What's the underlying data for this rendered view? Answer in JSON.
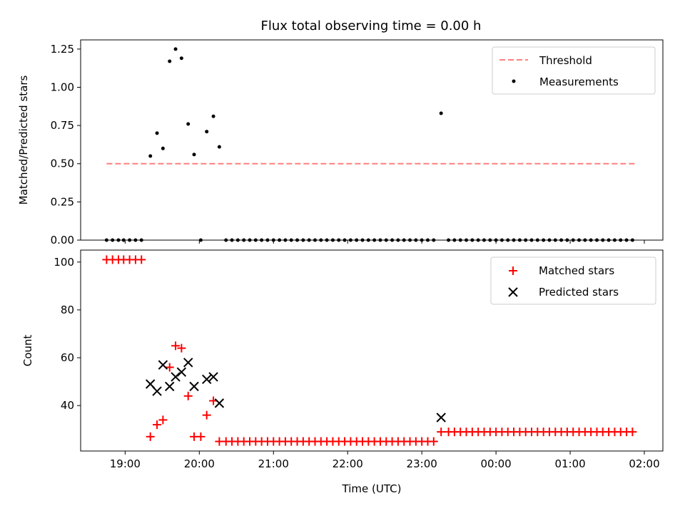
{
  "chart_data": {
    "type": "scatter",
    "title": "Flux total observing time = 0.00 h",
    "xlabel": "Time (UTC)",
    "x_units": "hours since 19:00 UTC",
    "x_tick_labels": [
      "19:00",
      "20:00",
      "21:00",
      "22:00",
      "23:00",
      "00:00",
      "01:00",
      "02:00"
    ],
    "x_tick_values": [
      0,
      1,
      2,
      3,
      4,
      5,
      6,
      7
    ],
    "xlim": [
      -0.6,
      7.25
    ],
    "panels": [
      {
        "id": "ratio",
        "ylabel": "Matched/Predicted stars",
        "ylim": [
          0,
          1.31
        ],
        "y_ticks": [
          0,
          0.25,
          0.5,
          0.75,
          1.0,
          1.25
        ],
        "y_tick_labels": [
          "0.00",
          "0.25",
          "0.50",
          "0.75",
          "1.00",
          "1.25"
        ],
        "legend_position": "upper right",
        "threshold": {
          "name": "Threshold",
          "value": 0.5,
          "x_start": -0.25,
          "x_end": 6.9,
          "color": "#ff7f7f",
          "style": "dashed"
        },
        "measurements": {
          "name": "Measurements",
          "color": "#000000",
          "points": [
            [
              -0.25,
              0
            ],
            [
              -0.17,
              0
            ],
            [
              -0.09,
              0
            ],
            [
              -0.02,
              0
            ],
            [
              0.06,
              0
            ],
            [
              0.14,
              0
            ],
            [
              0.22,
              0
            ],
            [
              0.34,
              0.55
            ],
            [
              0.43,
              0.7
            ],
            [
              0.51,
              0.6
            ],
            [
              0.6,
              1.17
            ],
            [
              0.68,
              1.25
            ],
            [
              0.76,
              1.19
            ],
            [
              0.85,
              0.76
            ],
            [
              0.93,
              0.56
            ],
            [
              1.02,
              0
            ],
            [
              1.1,
              0.71
            ],
            [
              1.19,
              0.81
            ],
            [
              1.27,
              0.61
            ],
            [
              1.36,
              0
            ],
            [
              1.44,
              0
            ],
            [
              1.52,
              0
            ],
            [
              1.6,
              0
            ],
            [
              1.68,
              0
            ],
            [
              1.76,
              0
            ],
            [
              1.84,
              0
            ],
            [
              1.92,
              0
            ],
            [
              2.0,
              0
            ],
            [
              2.08,
              0
            ],
            [
              2.16,
              0
            ],
            [
              2.24,
              0
            ],
            [
              2.32,
              0
            ],
            [
              2.4,
              0
            ],
            [
              2.48,
              0
            ],
            [
              2.56,
              0
            ],
            [
              2.64,
              0
            ],
            [
              2.72,
              0
            ],
            [
              2.8,
              0
            ],
            [
              2.88,
              0
            ],
            [
              2.96,
              0
            ],
            [
              3.04,
              0
            ],
            [
              3.12,
              0
            ],
            [
              3.2,
              0
            ],
            [
              3.28,
              0
            ],
            [
              3.36,
              0
            ],
            [
              3.44,
              0
            ],
            [
              3.52,
              0
            ],
            [
              3.6,
              0
            ],
            [
              3.68,
              0
            ],
            [
              3.76,
              0
            ],
            [
              3.84,
              0
            ],
            [
              3.92,
              0
            ],
            [
              4.0,
              0
            ],
            [
              4.08,
              0
            ],
            [
              4.16,
              0
            ],
            [
              4.26,
              0.83
            ],
            [
              4.36,
              0
            ],
            [
              4.44,
              0
            ],
            [
              4.52,
              0
            ],
            [
              4.6,
              0
            ],
            [
              4.68,
              0
            ],
            [
              4.76,
              0
            ],
            [
              4.84,
              0
            ],
            [
              4.92,
              0
            ],
            [
              5.0,
              0
            ],
            [
              5.08,
              0
            ],
            [
              5.16,
              0
            ],
            [
              5.24,
              0
            ],
            [
              5.32,
              0
            ],
            [
              5.4,
              0
            ],
            [
              5.48,
              0
            ],
            [
              5.56,
              0
            ],
            [
              5.64,
              0
            ],
            [
              5.72,
              0
            ],
            [
              5.8,
              0
            ],
            [
              5.88,
              0
            ],
            [
              5.96,
              0
            ],
            [
              6.04,
              0
            ],
            [
              6.12,
              0
            ],
            [
              6.2,
              0
            ],
            [
              6.28,
              0
            ],
            [
              6.36,
              0
            ],
            [
              6.44,
              0
            ],
            [
              6.52,
              0
            ],
            [
              6.6,
              0
            ],
            [
              6.68,
              0
            ],
            [
              6.76,
              0
            ],
            [
              6.84,
              0
            ]
          ]
        }
      },
      {
        "id": "counts",
        "ylabel": "Count",
        "ylim": [
          21,
          105
        ],
        "y_ticks": [
          40,
          60,
          80,
          100
        ],
        "y_tick_labels": [
          "40",
          "60",
          "80",
          "100"
        ],
        "legend_position": "upper right",
        "matched": {
          "name": "Matched stars",
          "color": "#ff0000",
          "marker": "+",
          "points": [
            [
              -0.25,
              101
            ],
            [
              -0.17,
              101
            ],
            [
              -0.09,
              101
            ],
            [
              -0.02,
              101
            ],
            [
              0.06,
              101
            ],
            [
              0.14,
              101
            ],
            [
              0.22,
              101
            ],
            [
              0.34,
              27
            ],
            [
              0.43,
              32
            ],
            [
              0.51,
              34
            ],
            [
              0.6,
              56
            ],
            [
              0.68,
              65
            ],
            [
              0.76,
              64
            ],
            [
              0.85,
              44
            ],
            [
              0.93,
              27
            ],
            [
              1.02,
              27
            ],
            [
              1.1,
              36
            ],
            [
              1.19,
              42
            ],
            [
              1.27,
              25
            ],
            [
              1.36,
              25
            ],
            [
              1.44,
              25
            ],
            [
              1.52,
              25
            ],
            [
              1.6,
              25
            ],
            [
              1.68,
              25
            ],
            [
              1.76,
              25
            ],
            [
              1.84,
              25
            ],
            [
              1.92,
              25
            ],
            [
              2.0,
              25
            ],
            [
              2.08,
              25
            ],
            [
              2.16,
              25
            ],
            [
              2.24,
              25
            ],
            [
              2.32,
              25
            ],
            [
              2.4,
              25
            ],
            [
              2.48,
              25
            ],
            [
              2.56,
              25
            ],
            [
              2.64,
              25
            ],
            [
              2.72,
              25
            ],
            [
              2.8,
              25
            ],
            [
              2.88,
              25
            ],
            [
              2.96,
              25
            ],
            [
              3.04,
              25
            ],
            [
              3.12,
              25
            ],
            [
              3.2,
              25
            ],
            [
              3.28,
              25
            ],
            [
              3.36,
              25
            ],
            [
              3.44,
              25
            ],
            [
              3.52,
              25
            ],
            [
              3.6,
              25
            ],
            [
              3.68,
              25
            ],
            [
              3.76,
              25
            ],
            [
              3.84,
              25
            ],
            [
              3.92,
              25
            ],
            [
              4.0,
              25
            ],
            [
              4.08,
              25
            ],
            [
              4.16,
              25
            ],
            [
              4.26,
              29
            ],
            [
              4.36,
              29
            ],
            [
              4.44,
              29
            ],
            [
              4.52,
              29
            ],
            [
              4.6,
              29
            ],
            [
              4.68,
              29
            ],
            [
              4.76,
              29
            ],
            [
              4.84,
              29
            ],
            [
              4.92,
              29
            ],
            [
              5.0,
              29
            ],
            [
              5.08,
              29
            ],
            [
              5.16,
              29
            ],
            [
              5.24,
              29
            ],
            [
              5.32,
              29
            ],
            [
              5.4,
              29
            ],
            [
              5.48,
              29
            ],
            [
              5.56,
              29
            ],
            [
              5.64,
              29
            ],
            [
              5.72,
              29
            ],
            [
              5.8,
              29
            ],
            [
              5.88,
              29
            ],
            [
              5.96,
              29
            ],
            [
              6.04,
              29
            ],
            [
              6.12,
              29
            ],
            [
              6.2,
              29
            ],
            [
              6.28,
              29
            ],
            [
              6.36,
              29
            ],
            [
              6.44,
              29
            ],
            [
              6.52,
              29
            ],
            [
              6.6,
              29
            ],
            [
              6.68,
              29
            ],
            [
              6.76,
              29
            ],
            [
              6.84,
              29
            ]
          ]
        },
        "predicted": {
          "name": "Predicted stars",
          "color": "#000000",
          "marker": "x",
          "points": [
            [
              0.34,
              49
            ],
            [
              0.43,
              46
            ],
            [
              0.51,
              57
            ],
            [
              0.6,
              48
            ],
            [
              0.68,
              52
            ],
            [
              0.76,
              54
            ],
            [
              0.85,
              58
            ],
            [
              0.93,
              48
            ],
            [
              1.1,
              51
            ],
            [
              1.19,
              52
            ],
            [
              1.27,
              41
            ],
            [
              4.26,
              35
            ]
          ]
        }
      }
    ]
  }
}
